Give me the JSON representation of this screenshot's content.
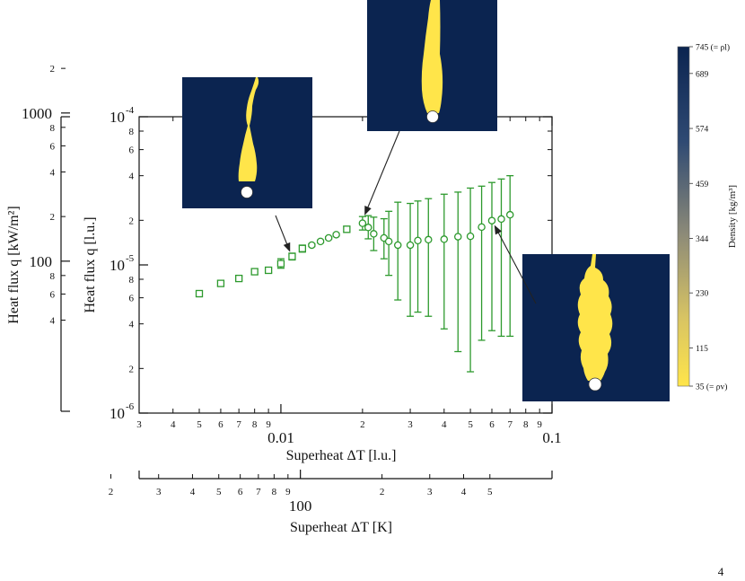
{
  "page_number": "4",
  "chart_data": {
    "type": "scatter",
    "xlabel": "Superheat ΔT [l.u.]",
    "xlabel_alt": "Superheat ΔT [K]",
    "ylabel": "Heat flux q [l.u.]",
    "ylabel_alt": "Heat flux q [kW/m²]",
    "xscale": "log",
    "yscale": "log",
    "xlim": [
      0.003,
      0.1
    ],
    "ylim": [
      1e-06,
      0.0001
    ],
    "grid": false,
    "x_major_ticks": [
      {
        "value": 0.01,
        "label": "0.01"
      },
      {
        "value": 0.1,
        "label": "0.1"
      }
    ],
    "x_minor_ticks": [
      {
        "value": 0.003,
        "label": "3"
      },
      {
        "value": 0.004,
        "label": "4"
      },
      {
        "value": 0.005,
        "label": "5"
      },
      {
        "value": 0.006,
        "label": "6"
      },
      {
        "value": 0.007,
        "label": "7"
      },
      {
        "value": 0.008,
        "label": "8"
      },
      {
        "value": 0.009,
        "label": "9"
      },
      {
        "value": 0.02,
        "label": "2"
      },
      {
        "value": 0.03,
        "label": "3"
      },
      {
        "value": 0.04,
        "label": "4"
      },
      {
        "value": 0.05,
        "label": "5"
      },
      {
        "value": 0.06,
        "label": "6"
      },
      {
        "value": 0.07,
        "label": "7"
      },
      {
        "value": 0.08,
        "label": "8"
      },
      {
        "value": 0.09,
        "label": "9"
      }
    ],
    "y_major_ticks": [
      {
        "value": 1e-06,
        "base": "10",
        "exp": "-6"
      },
      {
        "value": 1e-05,
        "base": "10",
        "exp": "-5"
      },
      {
        "value": 0.0001,
        "base": "10",
        "exp": "-4"
      }
    ],
    "y_minor_ticks": [
      {
        "value": 2e-06,
        "label": "2"
      },
      {
        "value": 4e-06,
        "label": "4"
      },
      {
        "value": 6e-06,
        "label": "6"
      },
      {
        "value": 8e-06,
        "label": "8"
      },
      {
        "value": 2e-05,
        "label": "2"
      },
      {
        "value": 4e-05,
        "label": "4"
      },
      {
        "value": 6e-05,
        "label": "6"
      },
      {
        "value": 8e-05,
        "label": "8"
      }
    ],
    "k_axis": {
      "lu_per_K": 0.000118,
      "major_ticks": [
        {
          "value": 100,
          "label": "100"
        }
      ],
      "minor_ticks": [
        {
          "value": 20,
          "label": "2"
        },
        {
          "value": 30,
          "label": "3"
        },
        {
          "value": 40,
          "label": "4"
        },
        {
          "value": 50,
          "label": "5"
        },
        {
          "value": 60,
          "label": "6"
        },
        {
          "value": 70,
          "label": "7"
        },
        {
          "value": 80,
          "label": "8"
        },
        {
          "value": 90,
          "label": "9"
        },
        {
          "value": 200,
          "label": "2"
        },
        {
          "value": 300,
          "label": "3"
        },
        {
          "value": 400,
          "label": "4"
        },
        {
          "value": 500,
          "label": "5"
        }
      ]
    },
    "kw_axis": {
      "lu_per_kw": 1.06e-07,
      "major_ticks": [
        {
          "value": 100,
          "label": "100"
        },
        {
          "value": 1000,
          "label": "1000"
        }
      ],
      "minor_ticks": [
        {
          "value": 40,
          "label": "4"
        },
        {
          "value": 60,
          "label": "6"
        },
        {
          "value": 80,
          "label": "8"
        },
        {
          "value": 200,
          "label": "2"
        },
        {
          "value": 400,
          "label": "4"
        },
        {
          "value": 600,
          "label": "6"
        },
        {
          "value": 800,
          "label": "8"
        },
        {
          "value": 2000,
          "label": "2"
        }
      ]
    },
    "series": [
      {
        "name": "q",
        "color": "#2e9a2e",
        "points": [
          {
            "x": 0.005,
            "y": 6.4e-06,
            "ylo": 6.1e-06,
            "yhi": 6.7e-06,
            "square": true
          },
          {
            "x": 0.006,
            "y": 7.5e-06,
            "ylo": 7.2e-06,
            "yhi": 7.8e-06,
            "square": true
          },
          {
            "x": 0.007,
            "y": 8.1e-06,
            "ylo": 7.8e-06,
            "yhi": 8.4e-06,
            "square": true
          },
          {
            "x": 0.008,
            "y": 9e-06,
            "ylo": 8.6e-06,
            "yhi": 9.4e-06,
            "square": true
          },
          {
            "x": 0.009,
            "y": 9.2e-06,
            "ylo": 8.9e-06,
            "yhi": 9.5e-06,
            "square": true
          },
          {
            "x": 0.01,
            "y": 1.02e-05,
            "ylo": 9.5e-06,
            "yhi": 1.1e-05,
            "square": true
          },
          {
            "x": 0.011,
            "y": 1.14e-05,
            "ylo": 1.08e-05,
            "yhi": 1.2e-05,
            "square": true
          },
          {
            "x": 0.012,
            "y": 1.29e-05,
            "ylo": 1.22e-05,
            "yhi": 1.36e-05,
            "square": true
          },
          {
            "x": 0.013,
            "y": 1.36e-05,
            "ylo": 1.33e-05,
            "yhi": 1.39e-05,
            "square": false
          },
          {
            "x": 0.014,
            "y": 1.44e-05,
            "ylo": 1.41e-05,
            "yhi": 1.47e-05,
            "square": false
          },
          {
            "x": 0.015,
            "y": 1.52e-05,
            "ylo": 1.49e-05,
            "yhi": 1.55e-05,
            "square": false
          },
          {
            "x": 0.016,
            "y": 1.6e-05,
            "ylo": 1.57e-05,
            "yhi": 1.63e-05,
            "square": false
          },
          {
            "x": 0.0175,
            "y": 1.74e-05,
            "ylo": 1.66e-05,
            "yhi": 1.82e-05,
            "square": true
          },
          {
            "x": 0.02,
            "y": 1.91e-05,
            "ylo": 1.72e-05,
            "yhi": 2.12e-05,
            "square": false
          },
          {
            "x": 0.021,
            "y": 1.79e-05,
            "ylo": 1.5e-05,
            "yhi": 2.15e-05,
            "square": false
          },
          {
            "x": 0.022,
            "y": 1.62e-05,
            "ylo": 1.25e-05,
            "yhi": 2.1e-05,
            "square": false
          },
          {
            "x": 0.024,
            "y": 1.52e-05,
            "ylo": 1.1e-05,
            "yhi": 2.05e-05,
            "square": false
          },
          {
            "x": 0.025,
            "y": 1.44e-05,
            "ylo": 8.5e-06,
            "yhi": 2.3e-05,
            "square": false
          },
          {
            "x": 0.027,
            "y": 1.36e-05,
            "ylo": 5.8e-06,
            "yhi": 2.65e-05,
            "square": false
          },
          {
            "x": 0.03,
            "y": 1.36e-05,
            "ylo": 4.5e-06,
            "yhi": 2.6e-05,
            "square": false
          },
          {
            "x": 0.032,
            "y": 1.46e-05,
            "ylo": 4.8e-06,
            "yhi": 2.7e-05,
            "square": false
          },
          {
            "x": 0.035,
            "y": 1.48e-05,
            "ylo": 4.5e-06,
            "yhi": 2.8e-05,
            "square": false
          },
          {
            "x": 0.04,
            "y": 1.49e-05,
            "ylo": 3.7e-06,
            "yhi": 3e-05,
            "square": false
          },
          {
            "x": 0.045,
            "y": 1.55e-05,
            "ylo": 2.6e-06,
            "yhi": 3.1e-05,
            "square": false
          },
          {
            "x": 0.05,
            "y": 1.56e-05,
            "ylo": 1.9e-06,
            "yhi": 3.3e-05,
            "square": false
          },
          {
            "x": 0.055,
            "y": 1.8e-05,
            "ylo": 3.1e-06,
            "yhi": 3.4e-05,
            "square": false
          },
          {
            "x": 0.06,
            "y": 1.99e-05,
            "ylo": 3.6e-06,
            "yhi": 3.6e-05,
            "square": false
          },
          {
            "x": 0.065,
            "y": 2.04e-05,
            "ylo": 3.3e-06,
            "yhi": 3.8e-05,
            "square": false
          },
          {
            "x": 0.07,
            "y": 2.18e-05,
            "ylo": 3.3e-06,
            "yhi": 4e-05,
            "square": false
          }
        ]
      }
    ],
    "insets": [
      {
        "name": "inset-bubble-low",
        "target": {
          "x": 0.011,
          "y": 1.13e-05
        }
      },
      {
        "name": "inset-bubble-mid",
        "target": {
          "x": 0.02,
          "y": 2e-05
        }
      },
      {
        "name": "inset-bubble-high",
        "target": {
          "x": 0.06,
          "y": 2e-05
        }
      }
    ],
    "colorbar": {
      "label": "Density [kg/m³]",
      "top_color": "#0b2450",
      "bottom_color": "#ffe54a",
      "ticks": [
        {
          "value": 745,
          "label": "745 (= ρl)"
        },
        {
          "value": 689,
          "label": "689"
        },
        {
          "value": 574,
          "label": "574"
        },
        {
          "value": 459,
          "label": "459"
        },
        {
          "value": 344,
          "label": "344"
        },
        {
          "value": 230,
          "label": "230"
        },
        {
          "value": 115,
          "label": "115"
        },
        {
          "value": 35,
          "label": "35 (= ρv)"
        }
      ]
    }
  }
}
